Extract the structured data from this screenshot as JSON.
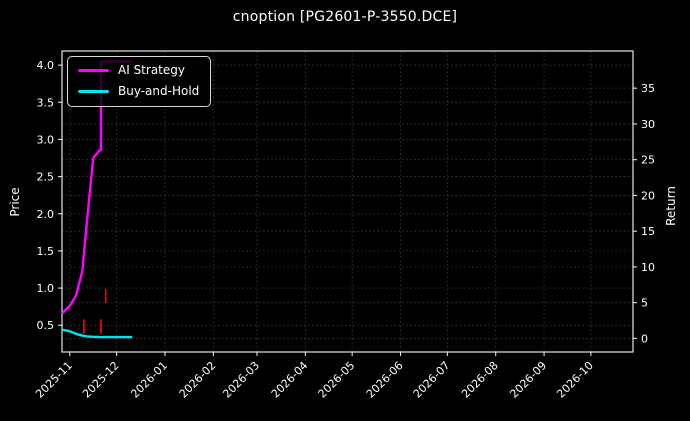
{
  "title": "cnoption [PG2601-P-3550.DCE]",
  "colors": {
    "background": "#000000",
    "frame": "#e6e6e6",
    "grid": "#6a6a6a",
    "text": "#ffffff",
    "ai_strategy": "#ff00ff",
    "buy_and_hold": "#00e5ee",
    "trade_marker": "#ff0000"
  },
  "legend": {
    "items": [
      {
        "id": "ai-strategy",
        "label": "AI Strategy",
        "color": "#ff00ff"
      },
      {
        "id": "buy-and-hold",
        "label": "Buy-and-Hold",
        "color": "#00e5ee"
      }
    ]
  },
  "chart_data": {
    "type": "line",
    "title": "cnoption [PG2601-P-3550.DCE]",
    "background": "#000000",
    "grid": true,
    "legend_position": "upper left",
    "x_axis": {
      "range": [
        "2025-10-27",
        "2026-10-28"
      ],
      "tick_dates": [
        "2025-11-01",
        "2025-12-01",
        "2026-01-01",
        "2026-02-01",
        "2026-03-01",
        "2026-04-01",
        "2026-05-01",
        "2026-06-01",
        "2026-07-01",
        "2026-08-01",
        "2026-09-01",
        "2026-10-01"
      ],
      "tick_labels": [
        "2025-11",
        "2025-12",
        "2026-01",
        "2026-02",
        "2026-03",
        "2026-04",
        "2026-05",
        "2026-06",
        "2026-07",
        "2026-08",
        "2026-09",
        "2026-10"
      ],
      "label_rotation": 45
    },
    "y_left": {
      "label": "Price",
      "range": [
        0.14,
        4.19
      ],
      "ticks": [
        0.5,
        1.0,
        1.5,
        2.0,
        2.5,
        3.0,
        3.5,
        4.0
      ],
      "tick_labels": [
        "0.5",
        "1.0",
        "1.5",
        "2.0",
        "2.5",
        "3.0",
        "3.5",
        "4.0"
      ]
    },
    "y_right": {
      "label": "Return",
      "range": [
        -1.9,
        40.2
      ],
      "ticks": [
        0,
        5,
        10,
        15,
        20,
        25,
        30,
        35
      ],
      "tick_labels": [
        "0",
        "5",
        "10",
        "15",
        "20",
        "25",
        "30",
        "35"
      ]
    },
    "series": [
      {
        "name": "AI Strategy",
        "id": "ai-strategy",
        "color": "#ff00ff",
        "axis": "left",
        "line_width": 2.4,
        "points": [
          [
            "2025-10-27",
            0.66
          ],
          [
            "2025-11-01",
            0.76
          ],
          [
            "2025-11-05",
            0.9
          ],
          [
            "2025-11-09",
            1.23
          ],
          [
            "2025-11-12",
            1.91
          ],
          [
            "2025-11-16",
            2.75
          ],
          [
            "2025-11-18",
            2.8
          ],
          [
            "2025-11-20",
            2.85
          ],
          [
            "2025-11-21",
            2.86
          ],
          [
            "2025-11-21",
            4.05
          ],
          [
            "2025-12-11",
            4.05
          ]
        ]
      },
      {
        "name": "Buy-and-Hold",
        "id": "buy-and-hold",
        "color": "#00e5ee",
        "axis": "left",
        "line_width": 2.4,
        "points": [
          [
            "2025-10-27",
            0.44
          ],
          [
            "2025-11-01",
            0.42
          ],
          [
            "2025-11-05",
            0.385
          ],
          [
            "2025-11-09",
            0.36
          ],
          [
            "2025-11-12",
            0.35
          ],
          [
            "2025-11-16",
            0.345
          ],
          [
            "2025-11-21",
            0.34
          ],
          [
            "2025-12-11",
            0.34
          ]
        ]
      }
    ],
    "trade_markers": [
      {
        "date": "2025-11-10",
        "from": 0.39,
        "to": 0.58,
        "color": "#ff0000"
      },
      {
        "date": "2025-11-21",
        "from": 0.39,
        "to": 0.58,
        "color": "#ff0000"
      },
      {
        "date": "2025-11-24",
        "from": 0.8,
        "to": 0.99,
        "color": "#ff0000"
      }
    ]
  }
}
